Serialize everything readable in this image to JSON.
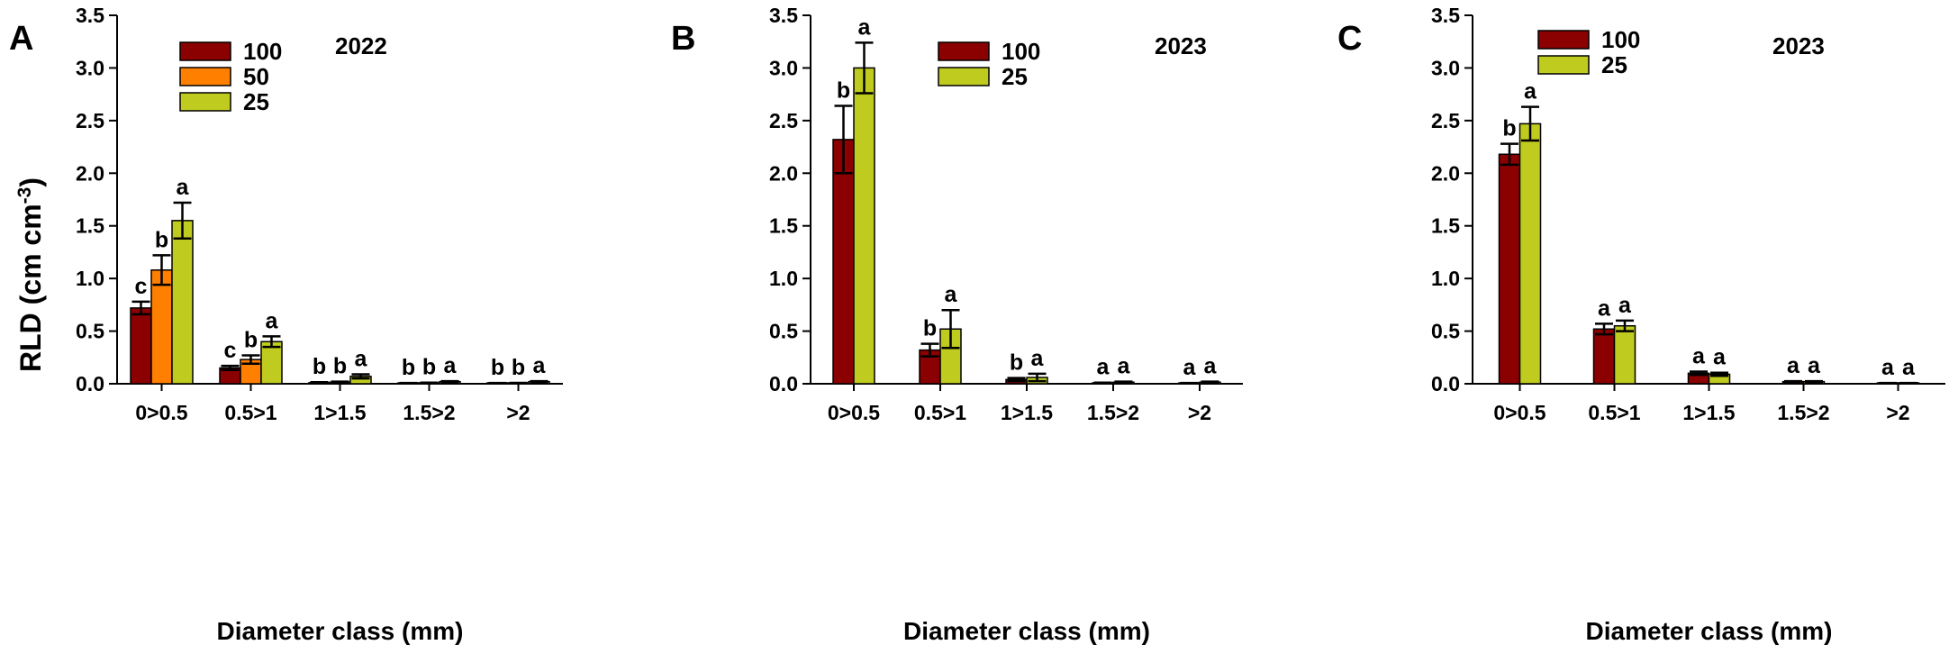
{
  "figure": {
    "ylabel_main": "RLD (cm cm",
    "ylabel_sup": "-3",
    "ylabel_close": ")"
  },
  "chart_data": [
    {
      "panel_label": "A",
      "type": "bar",
      "title": "2022",
      "xlabel": "Diameter class (mm)",
      "ylabel": "RLD (cm cm-3)",
      "ylim": [
        0,
        3.5
      ],
      "yticks": [
        "0.0",
        "0.5",
        "1.0",
        "1.5",
        "2.0",
        "2.5",
        "3.0",
        "3.5"
      ],
      "categories": [
        "0>0.5",
        "0.5>1",
        "1>1.5",
        "1.5>2",
        ">2"
      ],
      "legend_position": "top-left",
      "series": [
        {
          "name": "100",
          "color": "#8b0000",
          "values": [
            0.72,
            0.15,
            0.01,
            0.005,
            0.005
          ],
          "errors": [
            0.06,
            0.02,
            0.005,
            0.003,
            0.003
          ],
          "letters": [
            "c",
            "c",
            "b",
            "b",
            "b"
          ]
        },
        {
          "name": "50",
          "color": "#ff8000",
          "values": [
            1.08,
            0.23,
            0.015,
            0.008,
            0.006
          ],
          "errors": [
            0.14,
            0.04,
            0.005,
            0.003,
            0.003
          ],
          "letters": [
            "b",
            "b",
            "b",
            "b",
            "b"
          ]
        },
        {
          "name": "25",
          "color": "#bfcc1f",
          "values": [
            1.55,
            0.4,
            0.07,
            0.02,
            0.02
          ],
          "errors": [
            0.17,
            0.05,
            0.02,
            0.005,
            0.005
          ],
          "letters": [
            "a",
            "a",
            "a",
            "a",
            "a"
          ]
        }
      ]
    },
    {
      "panel_label": "B",
      "type": "bar",
      "title": "2023",
      "xlabel": "Diameter class (mm)",
      "ylabel": "",
      "ylim": [
        0,
        3.5
      ],
      "yticks": [
        "0.0",
        "0.5",
        "1.0",
        "1.5",
        "2.0",
        "2.5",
        "3.0",
        "3.5"
      ],
      "categories": [
        "0>0.5",
        "0.5>1",
        "1>1.5",
        "1.5>2",
        ">2"
      ],
      "legend_position": "top-left",
      "series": [
        {
          "name": "100",
          "color": "#8b0000",
          "values": [
            2.32,
            0.32,
            0.04,
            0.008,
            0.005
          ],
          "errors": [
            0.32,
            0.06,
            0.015,
            0.003,
            0.003
          ],
          "letters": [
            "b",
            "b",
            "b",
            "a",
            "a"
          ]
        },
        {
          "name": "25",
          "color": "#bfcc1f",
          "values": [
            3.0,
            0.52,
            0.06,
            0.015,
            0.015
          ],
          "errors": [
            0.24,
            0.18,
            0.035,
            0.005,
            0.005
          ],
          "letters": [
            "a",
            "a",
            "a",
            "a",
            "a"
          ]
        }
      ]
    },
    {
      "panel_label": "C",
      "type": "bar",
      "title": "2023",
      "xlabel": "Diameter class (mm)",
      "ylabel": "",
      "ylim": [
        0,
        3.5
      ],
      "yticks": [
        "0.0",
        "0.5",
        "1.0",
        "1.5",
        "2.0",
        "2.5",
        "3.0",
        "3.5"
      ],
      "categories": [
        "0>0.5",
        "0.5>1",
        "1>1.5",
        "1.5>2",
        ">2"
      ],
      "legend_position": "top-left",
      "series": [
        {
          "name": "100",
          "color": "#8b0000",
          "values": [
            2.18,
            0.52,
            0.1,
            0.02,
            0.005
          ],
          "errors": [
            0.1,
            0.05,
            0.015,
            0.005,
            0.003
          ],
          "letters": [
            "b",
            "a",
            "a",
            "a",
            "a"
          ]
        },
        {
          "name": "25",
          "color": "#bfcc1f",
          "values": [
            2.47,
            0.55,
            0.09,
            0.02,
            0.005
          ],
          "errors": [
            0.16,
            0.05,
            0.015,
            0.005,
            0.003
          ],
          "letters": [
            "a",
            "a",
            "a",
            "a",
            "a"
          ]
        }
      ]
    }
  ]
}
